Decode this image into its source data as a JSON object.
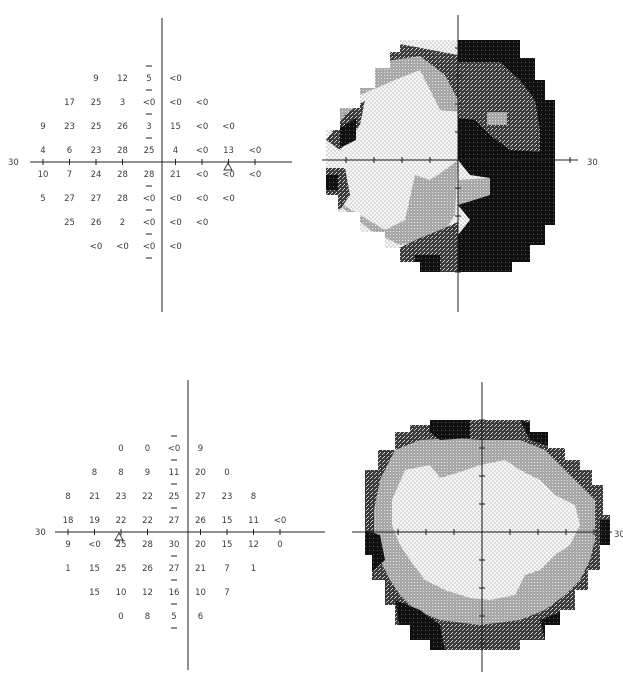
{
  "edge_label": "30",
  "colors": {
    "black": "#111111",
    "dark_gray": "#555555",
    "mid_gray": "#9a9a9a",
    "light_dot": "#f3f3f3",
    "axis": "#222222",
    "text": "#3a3a3a"
  },
  "top_field": {
    "values": [
      [
        "",
        "",
        "9",
        "12",
        "5",
        "<0",
        "",
        "",
        ""
      ],
      [
        "",
        "17",
        "25",
        "3",
        "<0",
        "<0",
        "<0",
        "",
        ""
      ],
      [
        "9",
        "23",
        "25",
        "26",
        "3",
        "15",
        "<0",
        "<0",
        ""
      ],
      [
        "4",
        "6",
        "23",
        "28",
        "25",
        "4",
        "<0",
        "13",
        "<0"
      ],
      [
        "10",
        "7",
        "24",
        "28",
        "28",
        "21",
        "<0",
        "<0",
        "<0"
      ],
      [
        "5",
        "27",
        "27",
        "28",
        "<0",
        "<0",
        "<0",
        "<0",
        ""
      ],
      [
        "",
        "25",
        "26",
        "2",
        "<0",
        "<0",
        "<0",
        "",
        ""
      ],
      [
        "",
        "",
        "<0",
        "<0",
        "<0",
        "<0",
        "",
        "",
        ""
      ]
    ],
    "blind_spot": "triangle"
  },
  "bottom_field": {
    "values": [
      [
        "",
        "",
        "0",
        "0",
        "<0",
        "9",
        "",
        "",
        ""
      ],
      [
        "",
        "8",
        "8",
        "9",
        "11",
        "20",
        "0",
        "",
        ""
      ],
      [
        "8",
        "21",
        "23",
        "22",
        "25",
        "27",
        "23",
        "8",
        ""
      ],
      [
        "18",
        "19",
        "22",
        "22",
        "27",
        "26",
        "15",
        "11",
        "<0"
      ],
      [
        "9",
        "<0",
        "25",
        "28",
        "30",
        "20",
        "15",
        "12",
        "0"
      ],
      [
        "1",
        "15",
        "25",
        "26",
        "27",
        "21",
        "7",
        "1",
        ""
      ],
      [
        "",
        "15",
        "10",
        "12",
        "16",
        "10",
        "7",
        "",
        ""
      ],
      [
        "",
        "",
        "0",
        "8",
        "5",
        "6",
        "",
        "",
        ""
      ]
    ],
    "blind_spot": "triangle"
  }
}
